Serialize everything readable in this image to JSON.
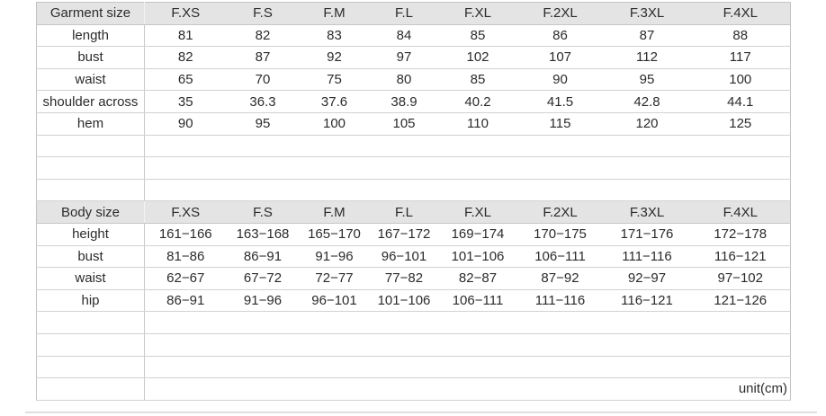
{
  "colors": {
    "header_bg": "#e4e4e4",
    "grid_line": "#d2d2d2",
    "text": "#2b2b2b",
    "background": "#ffffff"
  },
  "footer": {
    "unit_label": "unit(cm)"
  },
  "chart_data": [
    {
      "type": "table",
      "title": "Garment size",
      "columns": [
        "Garment size",
        "F.XS",
        "F.S",
        "F.M",
        "F.L",
        "F.XL",
        "F.2XL",
        "F.3XL",
        "F.4XL"
      ],
      "rows": [
        [
          "length",
          "81",
          "82",
          "83",
          "84",
          "85",
          "86",
          "87",
          "88"
        ],
        [
          "bust",
          "82",
          "87",
          "92",
          "97",
          "102",
          "107",
          "112",
          "117"
        ],
        [
          "waist",
          "65",
          "70",
          "75",
          "80",
          "85",
          "90",
          "95",
          "100"
        ],
        [
          "shoulder across",
          "35",
          "36.3",
          "37.6",
          "38.9",
          "40.2",
          "41.5",
          "42.8",
          "44.1"
        ],
        [
          "hem",
          "90",
          "95",
          "100",
          "105",
          "110",
          "115",
          "120",
          "125"
        ]
      ],
      "empty_rows_after": 3
    },
    {
      "type": "table",
      "title": "Body size",
      "columns": [
        "Body size",
        "F.XS",
        "F.S",
        "F.M",
        "F.L",
        "F.XL",
        "F.2XL",
        "F.3XL",
        "F.4XL"
      ],
      "rows": [
        [
          "height",
          "161−166",
          "163−168",
          "165−170",
          "167−172",
          "169−174",
          "170−175",
          "171−176",
          "172−178"
        ],
        [
          "bust",
          "81−86",
          "86−91",
          "91−96",
          "96−101",
          "101−106",
          "106−111",
          "111−116",
          "116−121"
        ],
        [
          "waist",
          "62−67",
          "67−72",
          "72−77",
          "77−82",
          "82−87",
          "87−92",
          "92−97",
          "97−102"
        ],
        [
          "hip",
          "86−91",
          "91−96",
          "96−101",
          "101−106",
          "106−111",
          "111−116",
          "116−121",
          "121−126"
        ]
      ],
      "empty_rows_after": 3
    }
  ]
}
